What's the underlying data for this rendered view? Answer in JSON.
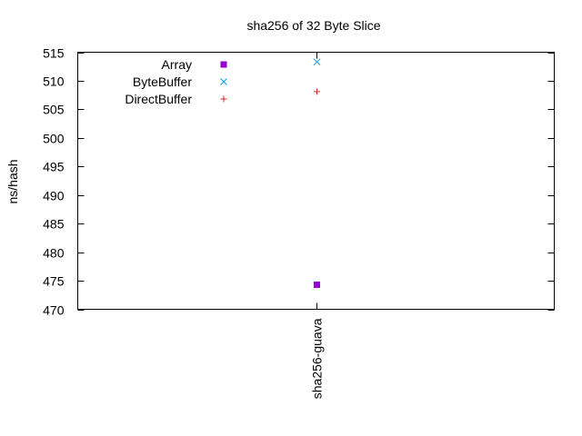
{
  "chart_data": {
    "type": "scatter",
    "title": "sha256 of 32 Byte Slice",
    "xlabel": "",
    "ylabel": "ns/hash",
    "categories": [
      "sha256-guava"
    ],
    "ylim": [
      470,
      515
    ],
    "yticks": [
      470,
      475,
      480,
      485,
      490,
      495,
      500,
      505,
      510,
      515
    ],
    "grid": false,
    "legend_position": "top-left",
    "series": [
      {
        "name": "Array",
        "values": [
          474.3
        ],
        "color": "#9400d3",
        "marker": "filled-square"
      },
      {
        "name": "ByteBuffer",
        "values": [
          513.3
        ],
        "color": "#009ee8",
        "marker": "cross"
      },
      {
        "name": "DirectBuffer",
        "values": [
          508.1
        ],
        "color": "#d62728",
        "marker": "plus"
      }
    ]
  }
}
